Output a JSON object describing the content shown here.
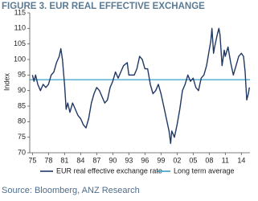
{
  "chart_data": {
    "type": "line",
    "title": "FIGURE 3. EUR REAL EFFECTIVE EXCHANGE",
    "y_label": "Index",
    "source": "Source: Bloomberg, ANZ Research",
    "x": [
      1975,
      1975.3,
      1975.6,
      1976,
      1976.5,
      1977,
      1977.5,
      1978,
      1978.5,
      1979,
      1979.5,
      1980,
      1980.3,
      1980.6,
      1981,
      1981.3,
      1981.6,
      1982,
      1982.5,
      1983,
      1983.5,
      1984,
      1984.5,
      1985,
      1985.5,
      1986,
      1986.5,
      1987,
      1987.5,
      1988,
      1988.5,
      1989,
      1989.5,
      1990,
      1990.5,
      1991,
      1991.5,
      1992,
      1992.7,
      1993,
      1993.5,
      1994,
      1994.5,
      1995,
      1995.5,
      1996,
      1996.5,
      1997,
      1997.5,
      1998,
      1998.5,
      1999,
      1999.5,
      2000,
      2000.5,
      2000.8,
      2001,
      2001.5,
      2002,
      2002.5,
      2003,
      2003.5,
      2004,
      2004.5,
      2005,
      2005.5,
      2006,
      2006.5,
      2007,
      2007.5,
      2008,
      2008.3,
      2008.5,
      2008.8,
      2009,
      2009.5,
      2009.8,
      2010,
      2010.4,
      2010.8,
      2011,
      2011.5,
      2012,
      2012.5,
      2013,
      2013.5,
      2014,
      2014.4,
      2014.7,
      2015,
      2015.3,
      2015.5
    ],
    "series": [
      {
        "name": "EUR real effective exchange rate",
        "color": "#1f3864",
        "values": [
          95,
          93,
          95,
          92,
          90,
          92,
          91,
          92,
          95,
          96,
          99,
          101,
          103.5,
          100,
          92,
          84,
          86,
          83,
          86,
          84,
          82,
          81,
          79,
          78,
          81,
          86,
          89,
          91,
          90,
          88,
          86,
          87,
          91,
          93,
          96,
          94,
          96,
          98,
          99,
          95,
          95,
          95,
          97,
          101,
          100,
          97,
          97,
          92,
          89,
          90,
          92,
          89,
          85,
          81,
          77,
          73,
          77,
          75,
          79,
          84,
          90,
          92,
          95,
          93,
          94,
          91,
          90,
          94,
          95,
          98,
          103,
          106,
          110,
          102,
          104,
          108,
          110,
          108,
          98,
          103,
          101,
          104,
          99,
          95,
          98,
          101,
          102,
          101,
          96,
          87,
          89,
          91
        ]
      }
    ],
    "average": {
      "name": "Long term average",
      "value": 93.5,
      "color": "#3aa0c8"
    },
    "xlim": [
      1974.5,
      2015.6
    ],
    "ylim": [
      70,
      115
    ],
    "xticks": [
      {
        "value": 1975,
        "label": "75"
      },
      {
        "value": 1978,
        "label": "78"
      },
      {
        "value": 1981,
        "label": "81"
      },
      {
        "value": 1984,
        "label": "84"
      },
      {
        "value": 1987,
        "label": "87"
      },
      {
        "value": 1990,
        "label": "90"
      },
      {
        "value": 1993,
        "label": "93"
      },
      {
        "value": 1996,
        "label": "96"
      },
      {
        "value": 1999,
        "label": "99"
      },
      {
        "value": 2002,
        "label": "02"
      },
      {
        "value": 2005,
        "label": "05"
      },
      {
        "value": 2008,
        "label": "08"
      },
      {
        "value": 2011,
        "label": "11"
      },
      {
        "value": 2014,
        "label": "14"
      }
    ],
    "yticks": [
      70,
      75,
      80,
      85,
      90,
      95,
      100,
      105,
      110,
      115
    ]
  }
}
